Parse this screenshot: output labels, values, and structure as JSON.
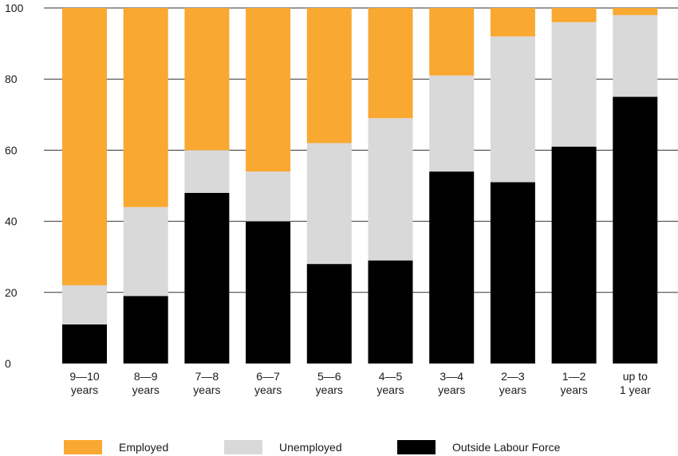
{
  "chart_data": {
    "type": "bar",
    "stacked": true,
    "categories": [
      [
        "9—10",
        "years"
      ],
      [
        "8—9",
        "years"
      ],
      [
        "7—8",
        "years"
      ],
      [
        "6—7",
        "years"
      ],
      [
        "5—6",
        "years"
      ],
      [
        "4—5",
        "years"
      ],
      [
        "3—4",
        "years"
      ],
      [
        "2—3",
        "years"
      ],
      [
        "1—2",
        "years"
      ],
      [
        "up to",
        "1 year"
      ]
    ],
    "series": [
      {
        "name": "Outside Labour Force",
        "color": "#000000",
        "values": [
          11,
          19,
          48,
          40,
          28,
          29,
          54,
          51,
          61,
          75
        ]
      },
      {
        "name": "Unemployed",
        "color": "#d9d9d9",
        "values": [
          11,
          25,
          12,
          14,
          34,
          40,
          27,
          41,
          35,
          23
        ]
      },
      {
        "name": "Employed",
        "color": "#f9a831",
        "values": [
          78,
          56,
          40,
          46,
          38,
          31,
          19,
          8,
          4,
          2
        ]
      }
    ],
    "ylim": [
      0,
      100
    ],
    "yticks": [
      0,
      20,
      40,
      60,
      80,
      100
    ],
    "grid": true,
    "legend_position": "bottom",
    "legend_order": [
      "Employed",
      "Unemployed",
      "Outside Labour Force"
    ]
  }
}
